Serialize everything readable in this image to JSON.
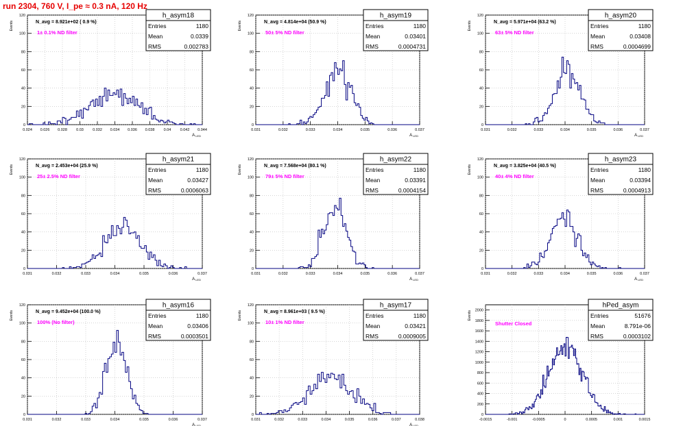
{
  "page_title": "run 2304,   760 V, I_pe ≈ 0.3 nA, 120 Hz",
  "colors": {
    "title": "#e60000",
    "hist": "#000080",
    "label": "#ff00ff",
    "grid": "#bbbbbb"
  },
  "chart_data": [
    {
      "type": "histogram",
      "name": "h_asym18",
      "navg": "N_avg = 8.921e+02 ( 0.9 %)",
      "filter": "1± 0.1% ND filter",
      "stats": {
        "entries": "1180",
        "mean": "0.0339",
        "rms": "0.002783"
      },
      "ylabel": "Events",
      "xlabel": "A_LED",
      "xlim": [
        0.024,
        0.044
      ],
      "ylim": [
        0,
        120
      ],
      "xticks": [
        "0.024",
        "0.026",
        "0.028",
        "0.03",
        "0.032",
        "0.034",
        "0.036",
        "0.038",
        "0.04",
        "0.042",
        "0.044"
      ],
      "yticks": [
        "0",
        "20",
        "40",
        "60",
        "80",
        "100",
        "120"
      ],
      "mu": 0.0339,
      "sigma": 0.002783,
      "entries_n": 1180,
      "binw": 0.0002
    },
    {
      "type": "histogram",
      "name": "h_asym19",
      "navg": "N_avg = 4.814e+04 (50.9 %)",
      "filter": "50± 5% ND filter",
      "stats": {
        "entries": "1180",
        "mean": "0.03401",
        "rms": "0.0004731"
      },
      "ylabel": "Events",
      "xlabel": "A_LED",
      "xlim": [
        0.031,
        0.037
      ],
      "ylim": [
        0,
        120
      ],
      "xticks": [
        "0.031",
        "0.032",
        "0.033",
        "0.034",
        "0.035",
        "0.036",
        "0.037"
      ],
      "yticks": [
        "0",
        "20",
        "40",
        "60",
        "80",
        "100",
        "120"
      ],
      "mu": 0.03401,
      "sigma": 0.0004731,
      "entries_n": 1180,
      "binw": 6e-05
    },
    {
      "type": "histogram",
      "name": "h_asym20",
      "navg": "N_avg = 5.971e+04 (63.2 %)",
      "filter": "63± 5% ND filter",
      "stats": {
        "entries": "1180",
        "mean": "0.03408",
        "rms": "0.0004699"
      },
      "ylabel": "Events",
      "xlabel": "A_LED",
      "xlim": [
        0.031,
        0.037
      ],
      "ylim": [
        0,
        120
      ],
      "xticks": [
        "0.031",
        "0.032",
        "0.033",
        "0.034",
        "0.035",
        "0.036",
        "0.037"
      ],
      "yticks": [
        "0",
        "20",
        "40",
        "60",
        "80",
        "100",
        "120"
      ],
      "mu": 0.03408,
      "sigma": 0.0004699,
      "entries_n": 1180,
      "binw": 6e-05
    },
    {
      "type": "histogram",
      "name": "h_asym21",
      "navg": "N_avg = 2.453e+04 (25.9 %)",
      "filter": "25± 2.5% ND filter",
      "stats": {
        "entries": "1180",
        "mean": "0.03427",
        "rms": "0.0006063"
      },
      "ylabel": "Events",
      "xlabel": "A_LED",
      "xlim": [
        0.031,
        0.037
      ],
      "ylim": [
        0,
        120
      ],
      "xticks": [
        "0.031",
        "0.032",
        "0.033",
        "0.034",
        "0.035",
        "0.036",
        "0.037"
      ],
      "yticks": [
        "0",
        "20",
        "40",
        "60",
        "80",
        "100",
        "120"
      ],
      "mu": 0.03427,
      "sigma": 0.0006063,
      "entries_n": 1180,
      "binw": 6e-05
    },
    {
      "type": "histogram",
      "name": "h_asym22",
      "navg": "N_avg = 7.568e+04 (80.1 %)",
      "filter": "79± 5% ND filter",
      "stats": {
        "entries": "1180",
        "mean": "0.03391",
        "rms": "0.0004154"
      },
      "ylabel": "Events",
      "xlabel": "A_LED",
      "xlim": [
        0.031,
        0.037
      ],
      "ylim": [
        0,
        120
      ],
      "xticks": [
        "0.031",
        "0.032",
        "0.033",
        "0.034",
        "0.035",
        "0.036",
        "0.037"
      ],
      "yticks": [
        "0",
        "20",
        "40",
        "60",
        "80",
        "100",
        "120"
      ],
      "mu": 0.03391,
      "sigma": 0.0004154,
      "entries_n": 1180,
      "binw": 6e-05
    },
    {
      "type": "histogram",
      "name": "h_asym23",
      "navg": "N_avg = 3.825e+04 (40.5 %)",
      "filter": "40± 4% ND filter",
      "stats": {
        "entries": "1180",
        "mean": "0.03394",
        "rms": "0.0004913"
      },
      "ylabel": "Events",
      "xlabel": "A_LED",
      "xlim": [
        0.031,
        0.037
      ],
      "ylim": [
        0,
        120
      ],
      "xticks": [
        "0.031",
        "0.032",
        "0.033",
        "0.034",
        "0.035",
        "0.036",
        "0.037"
      ],
      "yticks": [
        "0",
        "20",
        "40",
        "60",
        "80",
        "100",
        "120"
      ],
      "mu": 0.03394,
      "sigma": 0.0004913,
      "entries_n": 1180,
      "binw": 6e-05
    },
    {
      "type": "histogram",
      "name": "h_asym16",
      "navg": "N_avg = 9.452e+04 (100.0 %)",
      "filter": "100% (No filter)",
      "stats": {
        "entries": "1180",
        "mean": "0.03406",
        "rms": "0.0003501"
      },
      "ylabel": "Events",
      "xlabel": "A_LED",
      "xlim": [
        0.031,
        0.037
      ],
      "ylim": [
        0,
        120
      ],
      "xticks": [
        "0.031",
        "0.032",
        "0.033",
        "0.034",
        "0.035",
        "0.036",
        "0.037"
      ],
      "yticks": [
        "0",
        "20",
        "40",
        "60",
        "80",
        "100",
        "120"
      ],
      "mu": 0.03406,
      "sigma": 0.0003501,
      "entries_n": 1180,
      "binw": 6e-05
    },
    {
      "type": "histogram",
      "name": "h_asym17",
      "navg": "N_avg = 8.961e+03 ( 9.5 %)",
      "filter": "10± 1% ND filter",
      "stats": {
        "entries": "1180",
        "mean": "0.03421",
        "rms": "0.0009005"
      },
      "ylabel": "Events",
      "xlabel": "A_LED",
      "xlim": [
        0.031,
        0.038
      ],
      "ylim": [
        0,
        120
      ],
      "xticks": [
        "0.031",
        "0.032",
        "0.033",
        "0.034",
        "0.035",
        "0.036",
        "0.037",
        "0.038"
      ],
      "yticks": [
        "0",
        "20",
        "40",
        "60",
        "80",
        "100",
        "120"
      ],
      "mu": 0.03421,
      "sigma": 0.0009005,
      "entries_n": 1180,
      "binw": 8e-05
    },
    {
      "type": "histogram",
      "name": "hPed_asym",
      "navg": "",
      "filter": "Shutter Closed",
      "stats": {
        "entries": "51676",
        "mean": "8.791e-06",
        "rms": "0.0003102"
      },
      "ylabel": "Events",
      "xlabel": "",
      "xlim": [
        -0.0015,
        0.0015
      ],
      "ylim": [
        0,
        2100
      ],
      "xticks": [
        "-0.0015",
        "-0.001",
        "-0.0005",
        "0",
        "0.0005",
        "0.001",
        "0.0015"
      ],
      "yticks": [
        "0",
        "200",
        "400",
        "600",
        "800",
        "1000",
        "1200",
        "1400",
        "1600",
        "1800",
        "2000"
      ],
      "mu": 8.791e-06,
      "sigma": 0.0003102,
      "entries_n": 51676,
      "binw": 2e-05
    }
  ],
  "labels": {
    "entries": "Entries",
    "mean": "Mean",
    "rms": "RMS"
  }
}
